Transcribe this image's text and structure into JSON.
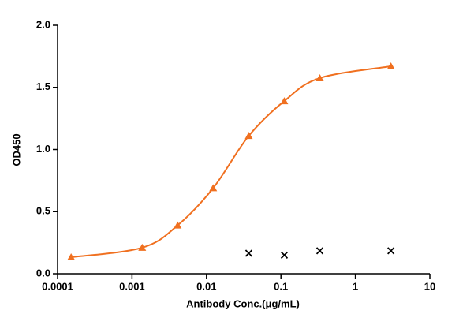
{
  "chart_data": {
    "type": "scatter",
    "xlabel": "Antibody Conc.(μg/mL)",
    "ylabel": "OD450",
    "xscale": "log",
    "x": [
      0.000152,
      0.00137,
      0.0041,
      0.0123,
      0.037,
      0.111,
      0.333,
      3
    ],
    "series": [
      {
        "color": "#f07020",
        "marker": "triangle",
        "fit_line": true,
        "values": [
          0.133,
          0.21,
          0.39,
          0.69,
          1.11,
          1.39,
          1.575,
          1.67
        ]
      },
      {
        "color": "#000000",
        "marker": "x",
        "fit_line": false,
        "values": [
          null,
          null,
          null,
          null,
          0.165,
          0.15,
          0.185,
          0.185
        ]
      }
    ],
    "xlim": [
      0.0001,
      10
    ],
    "xticks": [
      0.0001,
      0.001,
      0.01,
      0.1,
      1,
      10
    ],
    "ylim": [
      0,
      2
    ],
    "yticks": [
      {
        "value": 0,
        "label": "0.0"
      },
      {
        "value": 0.5,
        "label": "0.5"
      },
      {
        "value": 1,
        "label": "1.0"
      },
      {
        "value": 1.5,
        "label": "1.5"
      },
      {
        "value": 2,
        "label": "2.0"
      }
    ],
    "grid": false
  }
}
